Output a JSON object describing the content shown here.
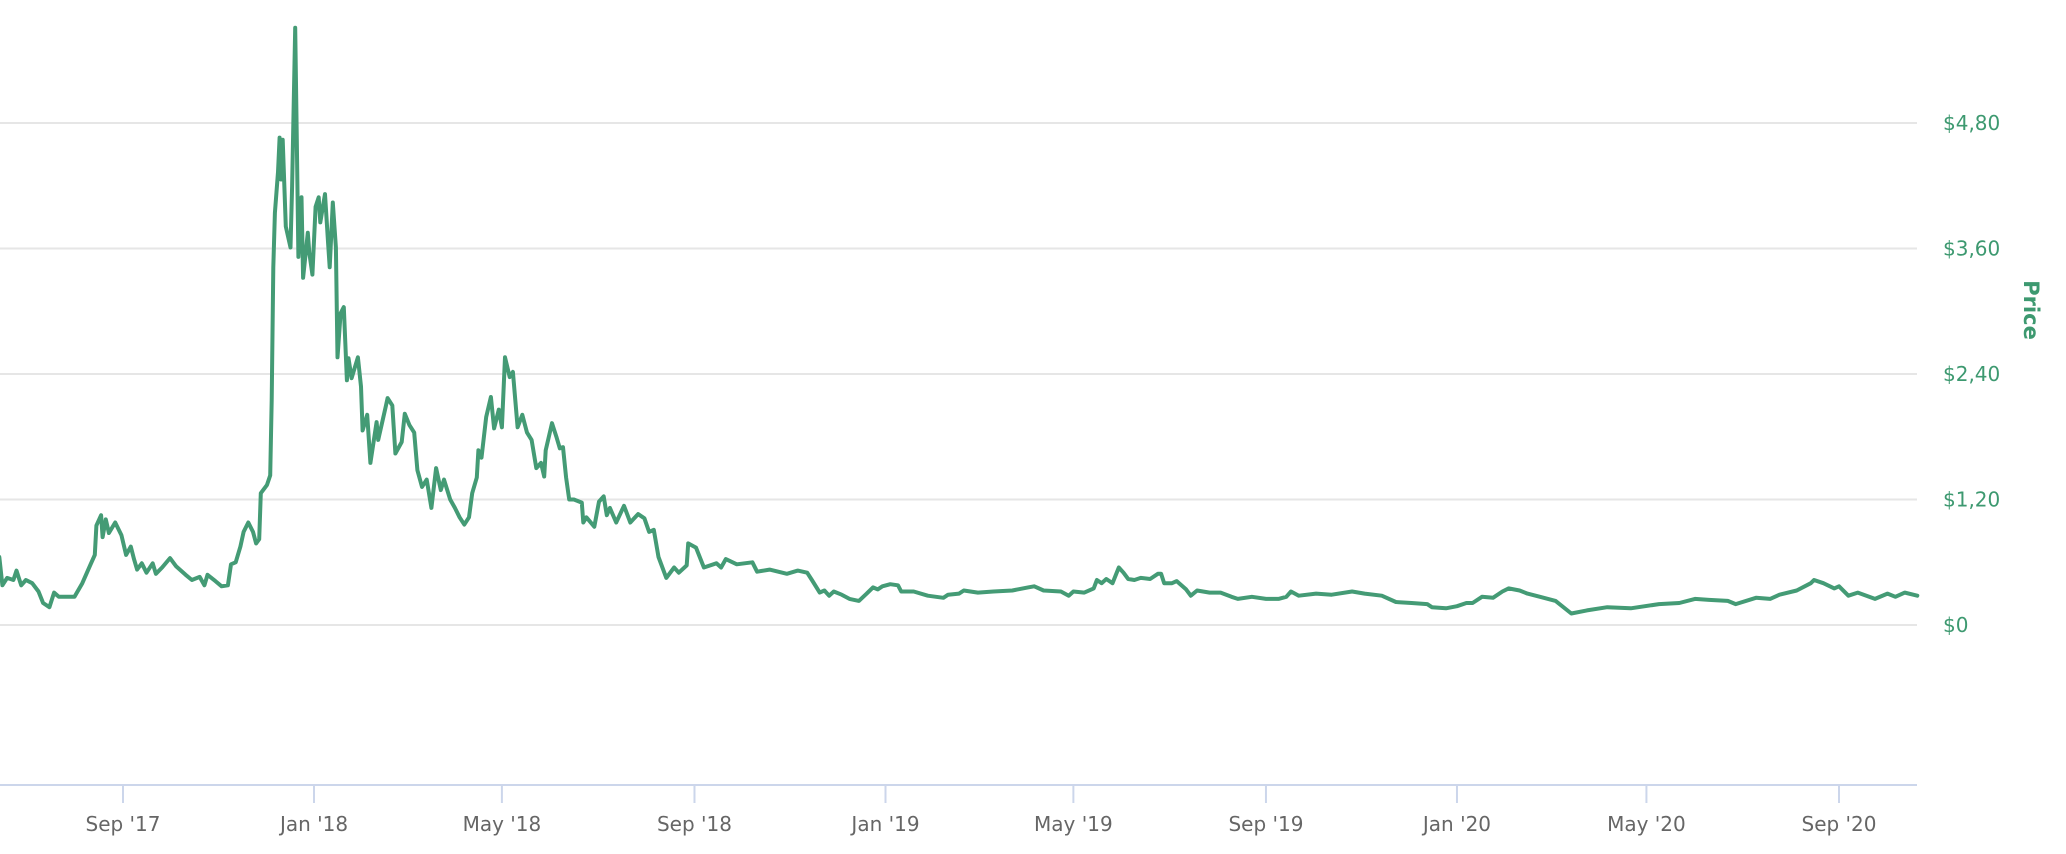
{
  "chart_data": {
    "type": "line",
    "title": "",
    "xlabel": "",
    "ylabel": "Price",
    "ylim": [
      0,
      4.8
    ],
    "y_ticks": [
      {
        "value": 4.8,
        "label": "$4,80"
      },
      {
        "value": 3.6,
        "label": "$3,60"
      },
      {
        "value": 2.4,
        "label": "$2,40"
      },
      {
        "value": 1.2,
        "label": "$1,20"
      },
      {
        "value": 0,
        "label": "$0"
      }
    ],
    "x_ticks": [
      {
        "date": "2017-09-01",
        "label": "Sep '17"
      },
      {
        "date": "2018-01-01",
        "label": "Jan '18"
      },
      {
        "date": "2018-05-01",
        "label": "May '18"
      },
      {
        "date": "2018-09-01",
        "label": "Sep '18"
      },
      {
        "date": "2019-01-01",
        "label": "Jan '19"
      },
      {
        "date": "2019-05-01",
        "label": "May '19"
      },
      {
        "date": "2019-09-01",
        "label": "Sep '19"
      },
      {
        "date": "2020-01-01",
        "label": "Jan '20"
      },
      {
        "date": "2020-05-01",
        "label": "May '20"
      },
      {
        "date": "2020-09-01",
        "label": "Sep '20"
      }
    ],
    "grid": true,
    "legend": "none",
    "y_axis_position": "right",
    "colors": {
      "line": "#449b75",
      "axis_text": "#3d9970",
      "x_text": "#666666",
      "grid": "#e6e6e6",
      "x_axis": "#ccd6eb"
    },
    "series": [
      {
        "name": "Price",
        "x": [
          "2017-06-14",
          "2017-06-16",
          "2017-06-19",
          "2017-06-23",
          "2017-06-25",
          "2017-06-28",
          "2017-07-01",
          "2017-07-05",
          "2017-07-09",
          "2017-07-12",
          "2017-07-16",
          "2017-07-19",
          "2017-07-22",
          "2017-07-27",
          "2017-08-01",
          "2017-08-06",
          "2017-08-11",
          "2017-08-14",
          "2017-08-15",
          "2017-08-18",
          "2017-08-19",
          "2017-08-21",
          "2017-08-23",
          "2017-08-27",
          "2017-08-31",
          "2017-09-03",
          "2017-09-06",
          "2017-09-08",
          "2017-09-10",
          "2017-09-13",
          "2017-09-16",
          "2017-09-20",
          "2017-09-22",
          "2017-09-26",
          "2017-10-01",
          "2017-10-05",
          "2017-10-11",
          "2017-10-15",
          "2017-10-20",
          "2017-10-23",
          "2017-10-25",
          "2017-10-30",
          "2017-11-03",
          "2017-11-07",
          "2017-11-09",
          "2017-11-12",
          "2017-11-15",
          "2017-11-17",
          "2017-11-20",
          "2017-11-23",
          "2017-11-25",
          "2017-11-27",
          "2017-11-28",
          "2017-12-02",
          "2017-12-04",
          "2017-12-05",
          "2017-12-06",
          "2017-12-07",
          "2017-12-09",
          "2017-12-10",
          "2017-12-11",
          "2017-12-12",
          "2017-12-14",
          "2017-12-17",
          "2017-12-18",
          "2017-12-20",
          "2017-12-21",
          "2017-12-22",
          "2017-12-24",
          "2017-12-25",
          "2017-12-28",
          "2017-12-29",
          "2017-12-31",
          "2018-01-02",
          "2018-01-04",
          "2018-01-05",
          "2018-01-08",
          "2018-01-10",
          "2018-01-11",
          "2018-01-13",
          "2018-01-15",
          "2018-01-16",
          "2018-01-18",
          "2018-01-20",
          "2018-01-22",
          "2018-01-23",
          "2018-01-25",
          "2018-01-29",
          "2018-01-31",
          "2018-02-01",
          "2018-02-04",
          "2018-02-06",
          "2018-02-10",
          "2018-02-11",
          "2018-02-16",
          "2018-02-17",
          "2018-02-20",
          "2018-02-22",
          "2018-02-26",
          "2018-02-28",
          "2018-03-03",
          "2018-03-06",
          "2018-03-08",
          "2018-03-11",
          "2018-03-14",
          "2018-03-17",
          "2018-03-20",
          "2018-03-23",
          "2018-03-25",
          "2018-03-29",
          "2018-04-01",
          "2018-04-04",
          "2018-04-07",
          "2018-04-10",
          "2018-04-12",
          "2018-04-15",
          "2018-04-16",
          "2018-04-18",
          "2018-04-21",
          "2018-04-24",
          "2018-04-26",
          "2018-04-29",
          "2018-05-01",
          "2018-05-03",
          "2018-05-06",
          "2018-05-08",
          "2018-05-11",
          "2018-05-14",
          "2018-05-17",
          "2018-05-20",
          "2018-05-23",
          "2018-05-26",
          "2018-05-28",
          "2018-05-29",
          "2018-06-02",
          "2018-06-05",
          "2018-06-07",
          "2018-06-09",
          "2018-06-11",
          "2018-06-13",
          "2018-06-16",
          "2018-06-21",
          "2018-06-22",
          "2018-06-24",
          "2018-06-29",
          "2018-07-02",
          "2018-07-05",
          "2018-07-07",
          "2018-07-09",
          "2018-07-13",
          "2018-07-18",
          "2018-07-22",
          "2018-07-27",
          "2018-07-31",
          "2018-08-03",
          "2018-08-06",
          "2018-08-09",
          "2018-08-14",
          "2018-08-19",
          "2018-08-22",
          "2018-08-27",
          "2018-08-28",
          "2018-09-02",
          "2018-09-07",
          "2018-09-15",
          "2018-09-18",
          "2018-09-21",
          "2018-09-28",
          "2018-10-08",
          "2018-10-11",
          "2018-10-19",
          "2018-10-30",
          "2018-11-06",
          "2018-11-12",
          "2018-11-15",
          "2018-11-20",
          "2018-11-23",
          "2018-11-26",
          "2018-11-29",
          "2018-12-04",
          "2018-12-09",
          "2018-12-15",
          "2018-12-20",
          "2018-12-24",
          "2018-12-27",
          "2018-12-30",
          "2019-01-04",
          "2019-01-09",
          "2019-01-11",
          "2019-01-19",
          "2019-01-28",
          "2019-02-07",
          "2019-02-10",
          "2019-02-17",
          "2019-02-20",
          "2019-03-01",
          "2019-03-11",
          "2019-03-23",
          "2019-04-02",
          "2019-04-06",
          "2019-04-12",
          "2019-04-23",
          "2019-04-28",
          "2019-05-01",
          "2019-05-08",
          "2019-05-14",
          "2019-05-16",
          "2019-05-19",
          "2019-05-22",
          "2019-05-26",
          "2019-05-30",
          "2019-06-02",
          "2019-06-05",
          "2019-06-09",
          "2019-06-13",
          "2019-06-19",
          "2019-06-24",
          "2019-06-26",
          "2019-06-28",
          "2019-07-03",
          "2019-07-06",
          "2019-07-12",
          "2019-07-15",
          "2019-07-19",
          "2019-07-27",
          "2019-08-03",
          "2019-08-10",
          "2019-08-14",
          "2019-08-23",
          "2019-09-01",
          "2019-09-09",
          "2019-09-14",
          "2019-09-17",
          "2019-09-22",
          "2019-10-03",
          "2019-10-13",
          "2019-10-26",
          "2019-11-03",
          "2019-11-14",
          "2019-11-23",
          "2019-12-03",
          "2019-12-13",
          "2019-12-16",
          "2019-12-25",
          "2020-01-01",
          "2020-01-07",
          "2020-01-11",
          "2020-01-17",
          "2020-01-24",
          "2020-01-30",
          "2020-02-03",
          "2020-02-10",
          "2020-02-15",
          "2020-02-23",
          "2020-03-04",
          "2020-03-14",
          "2020-03-24",
          "2020-04-06",
          "2020-04-21",
          "2020-05-09",
          "2020-05-22",
          "2020-06-01",
          "2020-06-10",
          "2020-06-22",
          "2020-06-27",
          "2020-07-10",
          "2020-07-19",
          "2020-07-25",
          "2020-08-05",
          "2020-08-14",
          "2020-08-16",
          "2020-08-22",
          "2020-08-29",
          "2020-09-01",
          "2020-09-07",
          "2020-09-13",
          "2020-09-24",
          "2020-10-02",
          "2020-10-07",
          "2020-10-13",
          "2020-10-21"
        ],
        "values": [
          0.65,
          0.38,
          0.45,
          0.43,
          0.52,
          0.38,
          0.43,
          0.4,
          0.32,
          0.21,
          0.17,
          0.31,
          0.27,
          0.27,
          0.27,
          0.4,
          0.57,
          0.67,
          0.95,
          1.05,
          0.84,
          1.01,
          0.88,
          0.98,
          0.86,
          0.67,
          0.75,
          0.63,
          0.53,
          0.59,
          0.5,
          0.59,
          0.49,
          0.55,
          0.64,
          0.56,
          0.48,
          0.43,
          0.46,
          0.38,
          0.48,
          0.42,
          0.37,
          0.38,
          0.58,
          0.6,
          0.75,
          0.89,
          0.98,
          0.89,
          0.78,
          0.82,
          1.26,
          1.34,
          1.43,
          2.15,
          3.42,
          3.94,
          4.33,
          4.66,
          4.26,
          4.64,
          3.81,
          3.61,
          4.19,
          5.71,
          4.64,
          3.52,
          4.09,
          3.32,
          3.75,
          3.56,
          3.35,
          4.0,
          4.09,
          3.85,
          4.12,
          3.65,
          3.42,
          4.04,
          3.61,
          2.56,
          2.98,
          3.04,
          2.34,
          2.55,
          2.36,
          2.56,
          2.28,
          1.86,
          2.01,
          1.55,
          1.94,
          1.77,
          2.1,
          2.17,
          2.1,
          1.64,
          1.75,
          2.02,
          1.91,
          1.84,
          1.48,
          1.32,
          1.39,
          1.12,
          1.5,
          1.29,
          1.39,
          1.2,
          1.12,
          1.03,
          0.96,
          1.03,
          1.26,
          1.41,
          1.67,
          1.6,
          1.99,
          2.18,
          1.88,
          2.06,
          1.89,
          2.56,
          2.37,
          2.42,
          1.89,
          2.01,
          1.84,
          1.77,
          1.5,
          1.55,
          1.42,
          1.67,
          1.93,
          1.79,
          1.69,
          1.7,
          1.41,
          1.2,
          1.2,
          1.17,
          0.98,
          1.03,
          0.94,
          1.18,
          1.23,
          1.05,
          1.12,
          0.98,
          1.14,
          0.98,
          1.06,
          1.02,
          0.89,
          0.91,
          0.65,
          0.45,
          0.55,
          0.5,
          0.57,
          0.78,
          0.74,
          0.55,
          0.59,
          0.55,
          0.63,
          0.58,
          0.6,
          0.51,
          0.53,
          0.49,
          0.52,
          0.5,
          0.43,
          0.31,
          0.33,
          0.28,
          0.32,
          0.29,
          0.25,
          0.23,
          0.3,
          0.36,
          0.34,
          0.37,
          0.39,
          0.38,
          0.32,
          0.32,
          0.28,
          0.26,
          0.29,
          0.3,
          0.33,
          0.31,
          0.32,
          0.33,
          0.36,
          0.37,
          0.33,
          0.32,
          0.28,
          0.32,
          0.31,
          0.35,
          0.43,
          0.4,
          0.44,
          0.4,
          0.55,
          0.5,
          0.44,
          0.43,
          0.45,
          0.44,
          0.49,
          0.49,
          0.4,
          0.4,
          0.42,
          0.34,
          0.28,
          0.33,
          0.31,
          0.31,
          0.27,
          0.25,
          0.27,
          0.25,
          0.25,
          0.27,
          0.32,
          0.28,
          0.3,
          0.29,
          0.32,
          0.3,
          0.28,
          0.22,
          0.21,
          0.2,
          0.17,
          0.16,
          0.18,
          0.21,
          0.21,
          0.27,
          0.26,
          0.32,
          0.35,
          0.33,
          0.3,
          0.27,
          0.23,
          0.11,
          0.14,
          0.17,
          0.16,
          0.2,
          0.21,
          0.25,
          0.24,
          0.23,
          0.2,
          0.26,
          0.25,
          0.29,
          0.33,
          0.4,
          0.43,
          0.4,
          0.35,
          0.37,
          0.28,
          0.31,
          0.25,
          0.3,
          0.27,
          0.31,
          0.28
        ]
      }
    ]
  }
}
